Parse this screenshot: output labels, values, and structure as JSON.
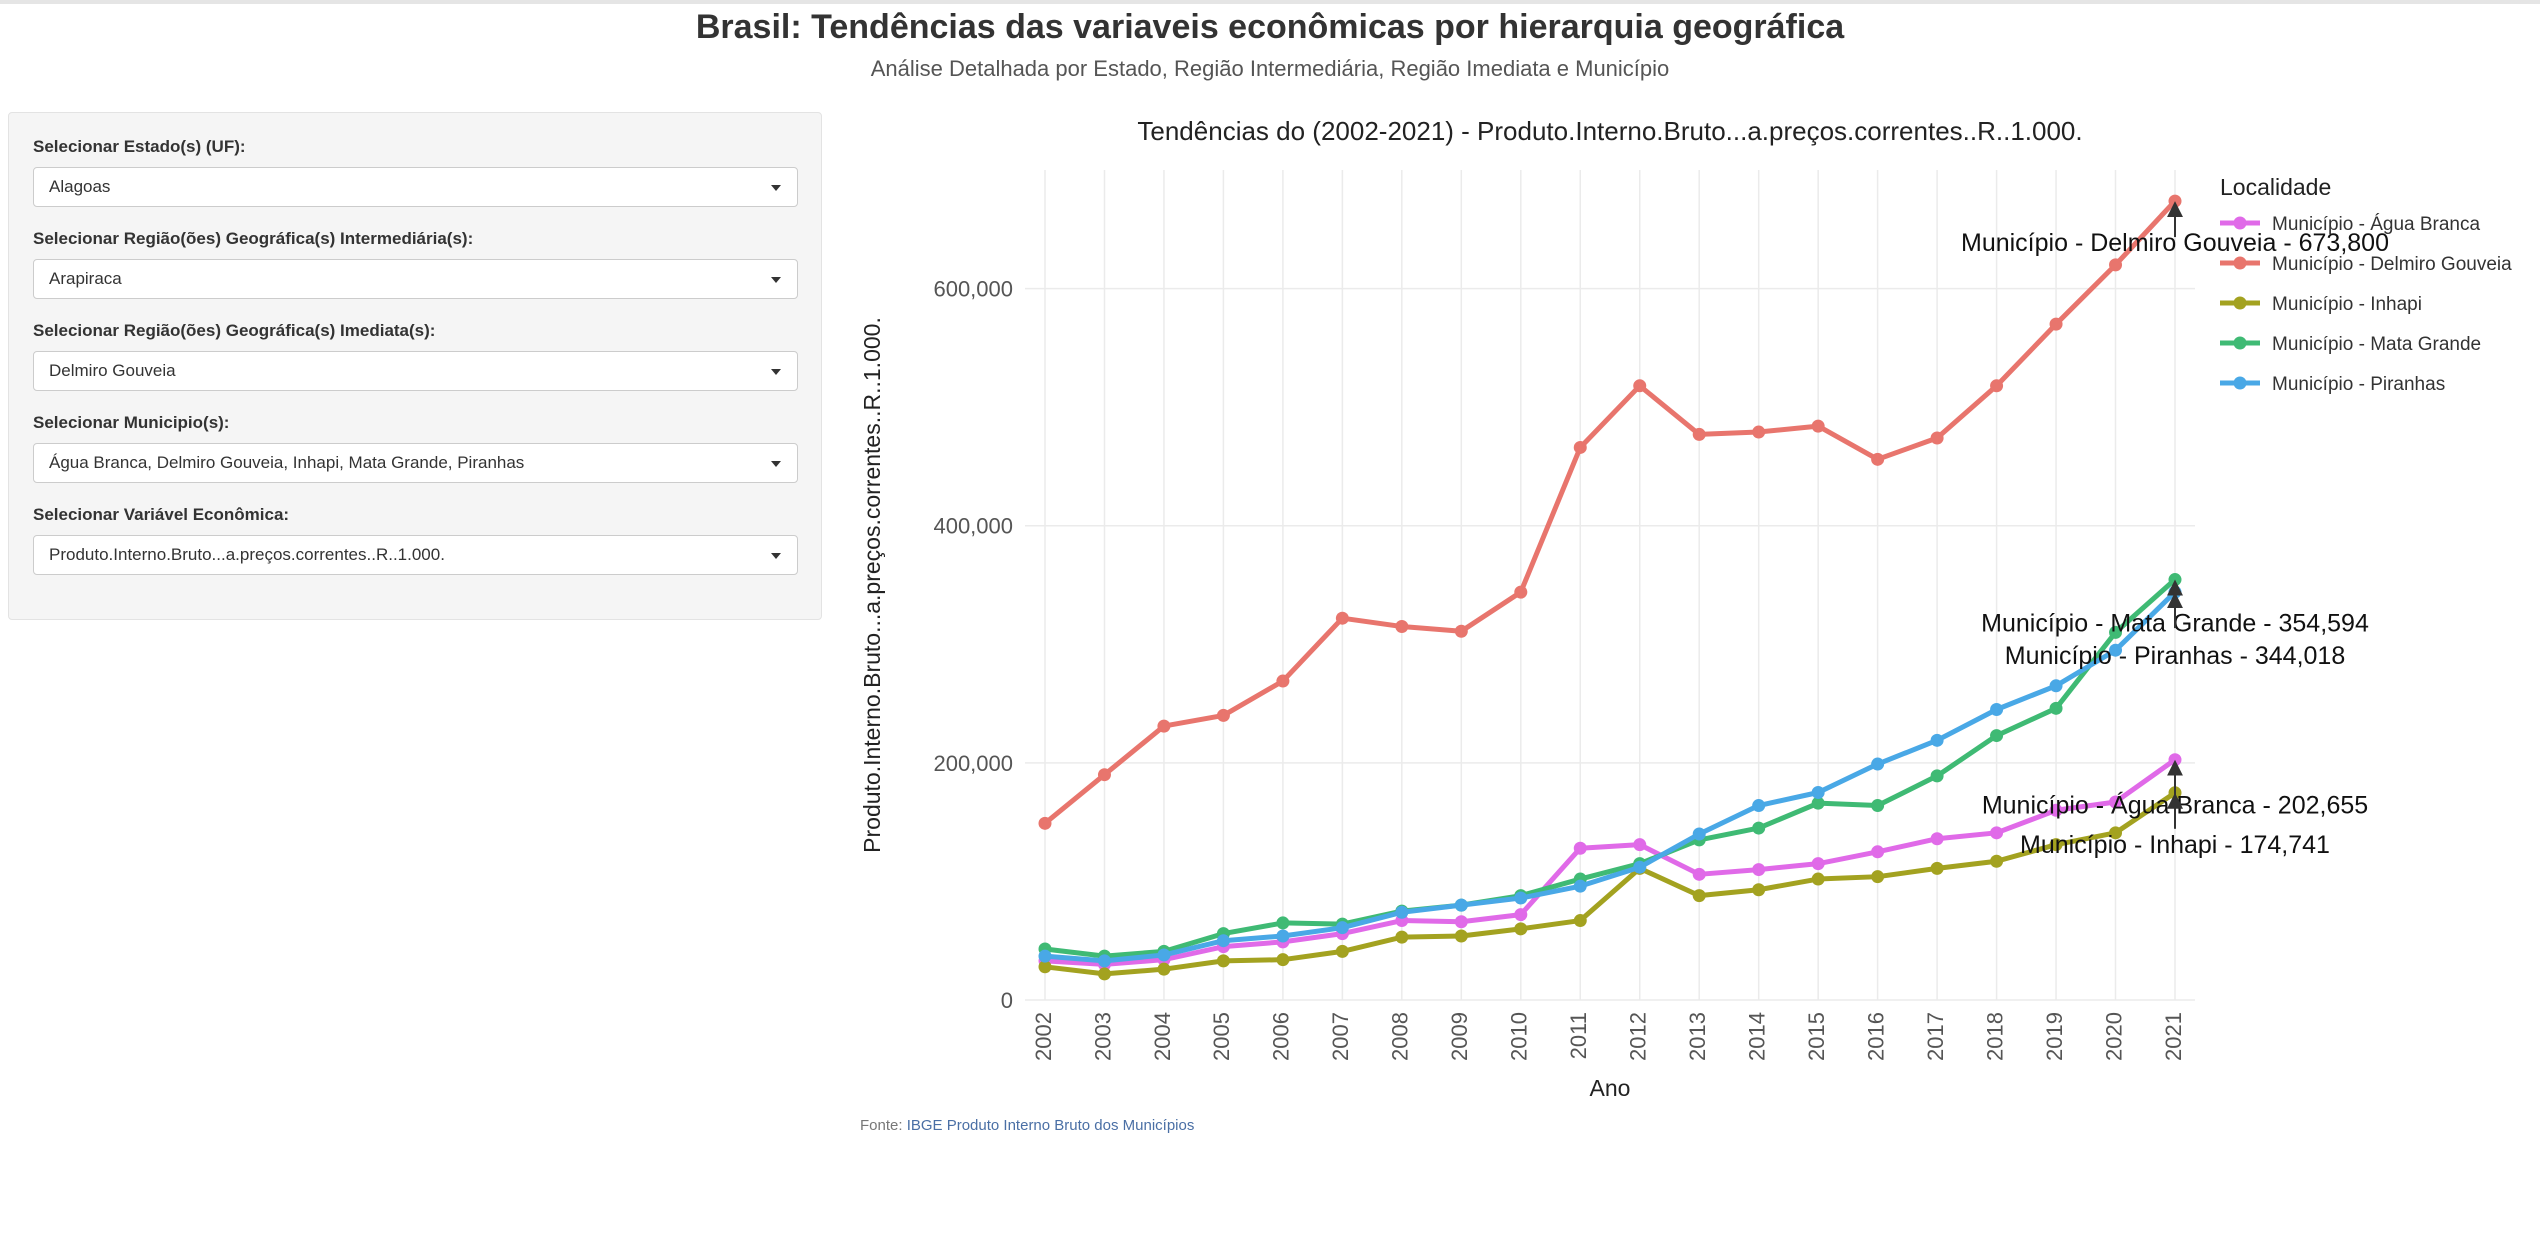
{
  "page": {
    "title": "Brasil: Tendências das variaveis econômicas por hierarquia geográfica",
    "subtitle": "Análise Detalhada por Estado, Região Intermediária, Região Imediata e Município"
  },
  "filters": {
    "estado": {
      "label": "Selecionar Estado(s) (UF):",
      "value": "Alagoas"
    },
    "intermediaria": {
      "label": "Selecionar Região(ões) Geográfica(s) Intermediária(s):",
      "value": "Arapiraca"
    },
    "imediata": {
      "label": "Selecionar Região(ões) Geográfica(s) Imediata(s):",
      "value": "Delmiro Gouveia"
    },
    "municipios": {
      "label": "Selecionar Municipio(s):",
      "value": "Água Branca, Delmiro Gouveia, Inhapi, Mata Grande, Piranhas"
    },
    "variavel": {
      "label": "Selecionar Variável Econômica:",
      "value": "Produto.Interno.Bruto...a.preços.correntes..R..1.000."
    }
  },
  "source": {
    "prefix": "Fonte: ",
    "link_text": "IBGE Produto Interno Bruto dos Municípios"
  },
  "chart_data": {
    "type": "line",
    "title": "Tendências do (2002-2021) - Produto.Interno.Bruto...a.preços.correntes..R..1.000.",
    "xlabel": "Ano",
    "ylabel": "Produto.Interno.Bruto...a.preços.correntes..R..1.000.",
    "ylim": [
      0,
      700000
    ],
    "yticks": [
      0,
      200000,
      400000,
      600000
    ],
    "ytick_labels": [
      "0",
      "200,000",
      "400,000",
      "600,000"
    ],
    "x": [
      2002,
      2003,
      2004,
      2005,
      2006,
      2007,
      2008,
      2009,
      2010,
      2011,
      2012,
      2013,
      2014,
      2015,
      2016,
      2017,
      2018,
      2019,
      2020,
      2021
    ],
    "legend_title": "Localidade",
    "legend_position": "right",
    "grid": true,
    "series": [
      {
        "name": "Município - Água Branca",
        "color": "#e06ae8",
        "values": [
          33000,
          30000,
          34000,
          45000,
          49000,
          56000,
          67000,
          66000,
          72000,
          128000,
          131000,
          106000,
          110000,
          115000,
          125000,
          136000,
          141000,
          160000,
          167000,
          202655
        ]
      },
      {
        "name": "Município - Delmiro Gouveia",
        "color": "#e8756d",
        "values": [
          149000,
          190000,
          231000,
          240000,
          269000,
          322000,
          315000,
          311000,
          344000,
          466000,
          518000,
          477000,
          479000,
          484000,
          456000,
          474000,
          518000,
          570000,
          620000,
          673800
        ]
      },
      {
        "name": "Município - Inhapi",
        "color": "#a3a220",
        "values": [
          28000,
          22000,
          26000,
          33000,
          34000,
          41000,
          53000,
          54000,
          60000,
          67000,
          111000,
          88000,
          93000,
          102000,
          104000,
          111000,
          117000,
          131000,
          141000,
          174741
        ]
      },
      {
        "name": "Município - Mata Grande",
        "color": "#3fba74",
        "values": [
          43000,
          37000,
          41000,
          56000,
          65000,
          64000,
          75000,
          80000,
          88000,
          102000,
          115000,
          135000,
          145000,
          166000,
          164000,
          189000,
          223000,
          246000,
          310000,
          354594
        ]
      },
      {
        "name": "Município - Piranhas",
        "color": "#49a8e6",
        "values": [
          37000,
          33000,
          38000,
          50000,
          54000,
          61000,
          74000,
          80000,
          86000,
          96000,
          112000,
          140000,
          164000,
          175000,
          199000,
          219000,
          245000,
          265000,
          295000,
          344018
        ]
      }
    ],
    "annotations": [
      {
        "text": "Município - Delmiro Gouveia - 673,800",
        "x": 2021,
        "y": 673800
      },
      {
        "text": "Município - Mata Grande - 354,594",
        "x": 2021,
        "y": 354594
      },
      {
        "text": "Município - Piranhas - 344,018",
        "x": 2021,
        "y": 344018
      },
      {
        "text": "Município - Água Branca - 202,655",
        "x": 2021,
        "y": 202655
      },
      {
        "text": "Município - Inhapi - 174,741",
        "x": 2021,
        "y": 174741
      }
    ]
  }
}
